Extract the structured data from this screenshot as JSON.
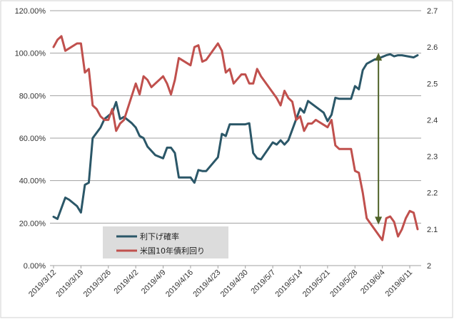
{
  "colors": {
    "series1": "#2b5768",
    "series2": "#c0504d",
    "arrow": "#4f6228",
    "grid": "#a0a0a0",
    "legend_bg": "#dcdcdc"
  },
  "chart_data": {
    "type": "line",
    "title": "",
    "left_axis": {
      "ylim": [
        0,
        1.2
      ],
      "ticks": [
        "0.00%",
        "20.00%",
        "40.00%",
        "60.00%",
        "80.00%",
        "100.00%",
        "120.00%"
      ]
    },
    "right_axis": {
      "ylim": [
        2.0,
        2.7
      ],
      "ticks": [
        "2",
        "2.1",
        "2.2",
        "2.3",
        "2.4",
        "2.5",
        "2.6",
        "2.7"
      ]
    },
    "x_tick_labels": [
      "2019/3/12",
      "2019/3/19",
      "2019/3/26",
      "2019/4/2",
      "2019/4/9",
      "2019/4/16",
      "2019/4/23",
      "2019/4/30",
      "2019/5/7",
      "2019/5/14",
      "2019/5/21",
      "2019/5/28",
      "2019/6/4",
      "2019/6/11"
    ],
    "x_day_range": [
      0,
      93
    ],
    "legend": [
      "利下げ確率",
      "米国10年債利回り"
    ],
    "series": [
      {
        "name": "利下げ確率",
        "axis": "left",
        "points": [
          [
            0,
            0.23
          ],
          [
            1,
            0.22
          ],
          [
            3,
            0.32
          ],
          [
            4,
            0.31
          ],
          [
            6,
            0.28
          ],
          [
            7,
            0.25
          ],
          [
            8,
            0.38
          ],
          [
            9,
            0.39
          ],
          [
            10,
            0.6
          ],
          [
            12,
            0.65
          ],
          [
            13,
            0.69
          ],
          [
            15,
            0.72
          ],
          [
            16,
            0.77
          ],
          [
            17,
            0.69
          ],
          [
            18,
            0.7
          ],
          [
            20,
            0.67
          ],
          [
            21,
            0.65
          ],
          [
            22,
            0.61
          ],
          [
            23,
            0.6
          ],
          [
            24,
            0.56
          ],
          [
            25,
            0.54
          ],
          [
            26,
            0.52
          ],
          [
            28,
            0.505
          ],
          [
            29,
            0.555
          ],
          [
            30,
            0.555
          ],
          [
            31,
            0.53
          ],
          [
            32,
            0.415
          ],
          [
            35,
            0.415
          ],
          [
            36,
            0.39
          ],
          [
            37,
            0.45
          ],
          [
            38,
            0.445
          ],
          [
            39,
            0.445
          ],
          [
            42,
            0.51
          ],
          [
            43,
            0.62
          ],
          [
            44,
            0.61
          ],
          [
            45,
            0.665
          ],
          [
            46,
            0.665
          ],
          [
            49,
            0.665
          ],
          [
            50,
            0.67
          ],
          [
            51,
            0.53
          ],
          [
            52,
            0.505
          ],
          [
            53,
            0.5
          ],
          [
            56,
            0.58
          ],
          [
            57,
            0.57
          ],
          [
            58,
            0.59
          ],
          [
            59,
            0.57
          ],
          [
            60,
            0.59
          ],
          [
            63,
            0.74
          ],
          [
            64,
            0.72
          ],
          [
            65,
            0.775
          ],
          [
            69,
            0.72
          ],
          [
            70,
            0.68
          ],
          [
            71,
            0.71
          ],
          [
            72,
            0.79
          ],
          [
            73,
            0.785
          ],
          [
            76,
            0.785
          ],
          [
            77,
            0.845
          ],
          [
            78,
            0.83
          ],
          [
            79,
            0.92
          ],
          [
            80,
            0.95
          ],
          [
            82,
            0.97
          ],
          [
            83,
            0.975
          ],
          [
            85,
            0.99
          ],
          [
            86,
            0.995
          ],
          [
            87,
            0.985
          ],
          [
            88,
            0.99
          ],
          [
            89,
            0.99
          ],
          [
            92,
            0.98
          ],
          [
            93,
            0.99
          ]
        ]
      },
      {
        "name": "米国10年債利回り",
        "axis": "right",
        "points": [
          [
            0,
            2.6
          ],
          [
            1,
            2.62
          ],
          [
            2,
            2.63
          ],
          [
            3,
            2.59
          ],
          [
            6,
            2.61
          ],
          [
            7,
            2.61
          ],
          [
            8,
            2.53
          ],
          [
            9,
            2.54
          ],
          [
            10,
            2.44
          ],
          [
            11,
            2.43
          ],
          [
            12,
            2.41
          ],
          [
            13,
            2.4
          ],
          [
            14,
            2.4
          ],
          [
            15,
            2.43
          ],
          [
            16,
            2.37
          ],
          [
            17,
            2.39
          ],
          [
            18,
            2.4
          ],
          [
            21,
            2.5
          ],
          [
            22,
            2.47
          ],
          [
            23,
            2.52
          ],
          [
            24,
            2.51
          ],
          [
            25,
            2.49
          ],
          [
            27,
            2.51
          ],
          [
            28,
            2.52
          ],
          [
            29,
            2.5
          ],
          [
            30,
            2.47
          ],
          [
            31,
            2.51
          ],
          [
            32,
            2.57
          ],
          [
            35,
            2.55
          ],
          [
            36,
            2.6
          ],
          [
            37,
            2.605
          ],
          [
            38,
            2.56
          ],
          [
            39,
            2.565
          ],
          [
            42,
            2.61
          ],
          [
            43,
            2.59
          ],
          [
            44,
            2.53
          ],
          [
            45,
            2.54
          ],
          [
            46,
            2.5
          ],
          [
            48,
            2.525
          ],
          [
            49,
            2.525
          ],
          [
            50,
            2.5
          ],
          [
            51,
            2.5
          ],
          [
            52,
            2.54
          ],
          [
            53,
            2.52
          ],
          [
            57,
            2.46
          ],
          [
            58,
            2.44
          ],
          [
            59,
            2.48
          ],
          [
            60,
            2.46
          ],
          [
            61,
            2.45
          ],
          [
            62,
            2.4
          ],
          [
            63,
            2.41
          ],
          [
            64,
            2.37
          ],
          [
            65,
            2.39
          ],
          [
            66,
            2.39
          ],
          [
            67,
            2.4
          ],
          [
            70,
            2.38
          ],
          [
            71,
            2.4
          ],
          [
            72,
            2.33
          ],
          [
            73,
            2.32
          ],
          [
            76,
            2.32
          ],
          [
            77,
            2.26
          ],
          [
            78,
            2.255
          ],
          [
            79,
            2.2
          ],
          [
            80,
            2.13
          ],
          [
            84,
            2.07
          ],
          [
            85,
            2.13
          ],
          [
            86,
            2.135
          ],
          [
            87,
            2.12
          ],
          [
            88,
            2.08
          ],
          [
            89,
            2.1
          ],
          [
            90,
            2.13
          ],
          [
            91,
            2.15
          ],
          [
            92,
            2.145
          ],
          [
            93,
            2.1
          ]
        ]
      }
    ],
    "annotation": {
      "type": "double-arrow",
      "x_day": 83,
      "from": 0.995,
      "to": 0.2
    }
  }
}
